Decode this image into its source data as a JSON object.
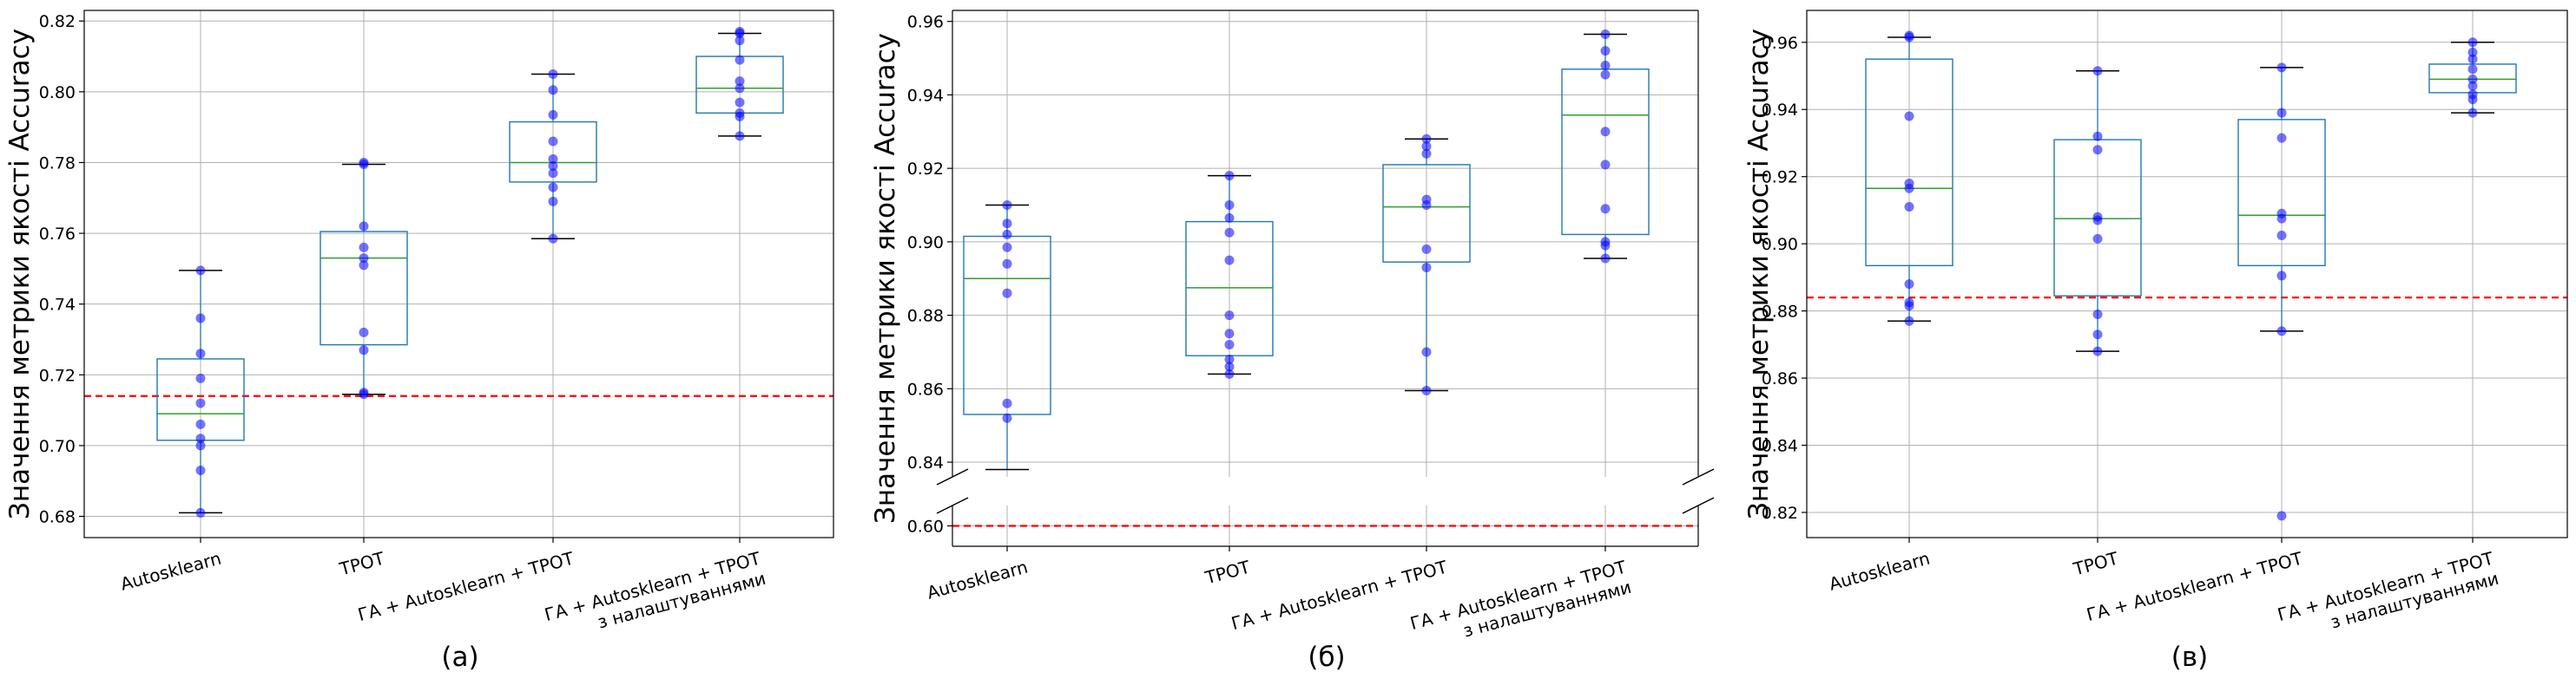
{
  "chart_data": [
    {
      "type": "box",
      "panel_label": "(а)",
      "ylabel": "Значення метрики якості Accuracy",
      "ylim": [
        0.674,
        0.823
      ],
      "yticks": [
        "0.68",
        "0.70",
        "0.72",
        "0.74",
        "0.76",
        "0.78",
        "0.80",
        "0.82"
      ],
      "categories": [
        "Autosklearn",
        "TPOT",
        "ГА + Autosklearn + TPOT",
        "ГА + Autosklearn + TPOT з налаштуваннями"
      ],
      "boxes": [
        {
          "whisker_low": 0.681,
          "q1": 0.7015,
          "median": 0.709,
          "q3": 0.7245,
          "whisker_high": 0.7495
        },
        {
          "whisker_low": 0.7145,
          "q1": 0.7285,
          "median": 0.753,
          "q3": 0.7605,
          "whisker_high": 0.7795
        },
        {
          "whisker_low": 0.7585,
          "q1": 0.7745,
          "median": 0.78,
          "q3": 0.7915,
          "whisker_high": 0.805
        },
        {
          "whisker_low": 0.7875,
          "q1": 0.794,
          "median": 0.801,
          "q3": 0.81,
          "whisker_high": 0.8165
        }
      ],
      "points": [
        [
          0.681,
          0.693,
          0.7,
          0.702,
          0.706,
          0.712,
          0.719,
          0.726,
          0.736,
          0.7495
        ],
        [
          0.7145,
          0.715,
          0.727,
          0.732,
          0.751,
          0.753,
          0.756,
          0.762,
          0.7795,
          0.78
        ],
        [
          0.7585,
          0.769,
          0.773,
          0.777,
          0.779,
          0.781,
          0.786,
          0.7935,
          0.8005,
          0.805
        ],
        [
          0.7875,
          0.793,
          0.794,
          0.797,
          0.801,
          0.803,
          0.809,
          0.8145,
          0.8165,
          0.817
        ]
      ],
      "threshold": 0.714
    },
    {
      "type": "box",
      "panel_label": "(б)",
      "ylabel": "Значення метрики якості Accuracy",
      "ylim_top": [
        0.836,
        0.963
      ],
      "yticks_top": [
        "0.84",
        "0.86",
        "0.88",
        "0.90",
        "0.92",
        "0.94",
        "0.96"
      ],
      "ylim_bottom": [
        0.589,
        0.611
      ],
      "yticks_bottom": [
        "0.60"
      ],
      "broken_axis": true,
      "categories": [
        "Autosklearn",
        "TPOT",
        "ГА + Autosklearn + TPOT",
        "ГА + Autosklearn + TPOT з налаштуваннями"
      ],
      "boxes": [
        {
          "whisker_low": 0.838,
          "q1": 0.853,
          "median": 0.89,
          "q3": 0.9015,
          "whisker_high": 0.91
        },
        {
          "whisker_low": 0.864,
          "q1": 0.869,
          "median": 0.8875,
          "q3": 0.9055,
          "whisker_high": 0.918
        },
        {
          "whisker_low": 0.8595,
          "q1": 0.8945,
          "median": 0.9095,
          "q3": 0.921,
          "whisker_high": 0.928
        },
        {
          "whisker_low": 0.8955,
          "q1": 0.902,
          "median": 0.9345,
          "q3": 0.947,
          "whisker_high": 0.9565
        }
      ],
      "points": [
        [
          0.852,
          0.856,
          0.886,
          0.894,
          0.8985,
          0.902,
          0.905,
          0.91
        ],
        [
          0.864,
          0.866,
          0.868,
          0.872,
          0.875,
          0.88,
          0.895,
          0.9025,
          0.9065,
          0.91,
          0.918
        ],
        [
          0.8595,
          0.87,
          0.893,
          0.898,
          0.91,
          0.9115,
          0.924,
          0.926,
          0.928
        ],
        [
          0.8955,
          0.899,
          0.9,
          0.909,
          0.921,
          0.93,
          0.9455,
          0.948,
          0.952,
          0.9565
        ]
      ],
      "threshold": 0.6
    },
    {
      "type": "box",
      "panel_label": "(в)",
      "ylabel": "Значення метрики якості Accuracy",
      "ylim": [
        0.8125,
        0.9695
      ],
      "yticks": [
        "0.82",
        "0.84",
        "0.86",
        "0.88",
        "0.90",
        "0.92",
        "0.94",
        "0.96"
      ],
      "categories": [
        "Autosklearn",
        "TPOT",
        "ГА + Autosklearn + TPOT",
        "ГА + Autosklearn + TPOT з налаштуваннями"
      ],
      "boxes": [
        {
          "whisker_low": 0.877,
          "q1": 0.8935,
          "median": 0.9165,
          "q3": 0.955,
          "whisker_high": 0.9615
        },
        {
          "whisker_low": 0.868,
          "q1": 0.8845,
          "median": 0.9075,
          "q3": 0.931,
          "whisker_high": 0.9515
        },
        {
          "whisker_low": 0.874,
          "q1": 0.8935,
          "median": 0.9085,
          "q3": 0.937,
          "whisker_high": 0.9525
        },
        {
          "whisker_low": 0.939,
          "q1": 0.945,
          "median": 0.949,
          "q3": 0.9535,
          "whisker_high": 0.96
        }
      ],
      "points": [
        [
          0.877,
          0.8815,
          0.8825,
          0.888,
          0.911,
          0.9165,
          0.918,
          0.938,
          0.9615,
          0.962
        ],
        [
          0.868,
          0.873,
          0.879,
          0.9015,
          0.907,
          0.908,
          0.928,
          0.932,
          0.9515
        ],
        [
          0.819,
          0.874,
          0.8905,
          0.9025,
          0.9075,
          0.909,
          0.9315,
          0.939,
          0.9525
        ],
        [
          0.939,
          0.943,
          0.9445,
          0.947,
          0.949,
          0.952,
          0.955,
          0.957,
          0.96
        ]
      ],
      "threshold": 0.884
    }
  ]
}
